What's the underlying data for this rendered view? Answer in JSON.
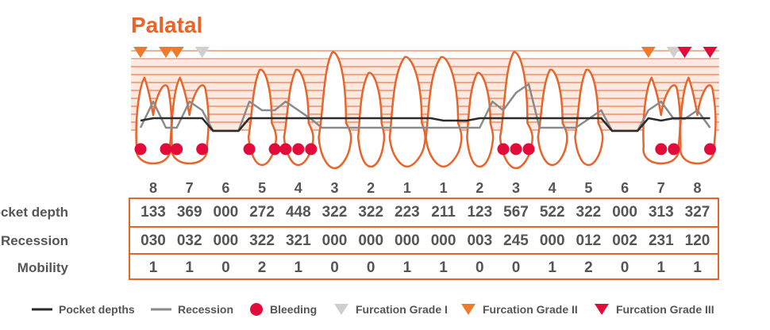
{
  "title": "Palatal",
  "colors": {
    "accent": "#e8642a",
    "pocket_line": "#2b2b2b",
    "recession_line": "#8a8a8a",
    "bleeding": "#e30b3a",
    "furcation_1": "#cfcfcf",
    "furcation_2": "#ee7a2c",
    "furcation_3": "#e30b3a"
  },
  "tooth_numbers": [
    "8",
    "7",
    "6",
    "5",
    "4",
    "3",
    "2",
    "1",
    "1",
    "2",
    "3",
    "4",
    "5",
    "6",
    "7",
    "8"
  ],
  "table": {
    "rows": [
      {
        "label": "Pocket depth",
        "values": [
          "133",
          "369",
          "000",
          "272",
          "448",
          "322",
          "322",
          "223",
          "211",
          "123",
          "567",
          "522",
          "322",
          "000",
          "313",
          "327"
        ]
      },
      {
        "label": "Recession",
        "values": [
          "030",
          "032",
          "000",
          "322",
          "321",
          "000",
          "000",
          "000",
          "000",
          "003",
          "245",
          "000",
          "012",
          "002",
          "231",
          "120"
        ]
      },
      {
        "label": "Mobility",
        "values": [
          "1",
          "1",
          "0",
          "2",
          "1",
          "0",
          "0",
          "1",
          "1",
          "0",
          "0",
          "1",
          "2",
          "0",
          "1",
          "1"
        ]
      }
    ]
  },
  "markers": {
    "bleeding_per_tooth": [
      [
        0,
        2
      ],
      [
        0,
        2
      ],
      [],
      [
        0,
        2
      ],
      [
        0,
        1,
        2
      ],
      [],
      [],
      [],
      [],
      [],
      [
        0,
        1,
        2
      ],
      [],
      [],
      [],
      [
        1,
        2
      ],
      [
        2
      ]
    ],
    "furcation_per_tooth": [
      [
        1,
        1
      ],
      [
        1,
        0
      ],
      [],
      [],
      [],
      [],
      [],
      [],
      [],
      [],
      [],
      [],
      [],
      [],
      [
        1,
        0
      ],
      [
        2,
        2
      ]
    ]
  },
  "legend": [
    {
      "icon": "pocket-line-icon",
      "label": "Pocket depths"
    },
    {
      "icon": "recession-line-icon",
      "label": "Recession"
    },
    {
      "icon": "bleeding-dot-icon",
      "label": "Bleeding"
    },
    {
      "icon": "furcation-grade-1-icon",
      "label": "Furcation Grade I"
    },
    {
      "icon": "furcation-grade-2-icon",
      "label": "Furcation Grade II"
    },
    {
      "icon": "furcation-grade-3-icon",
      "label": "Furcation Grade III"
    }
  ]
}
